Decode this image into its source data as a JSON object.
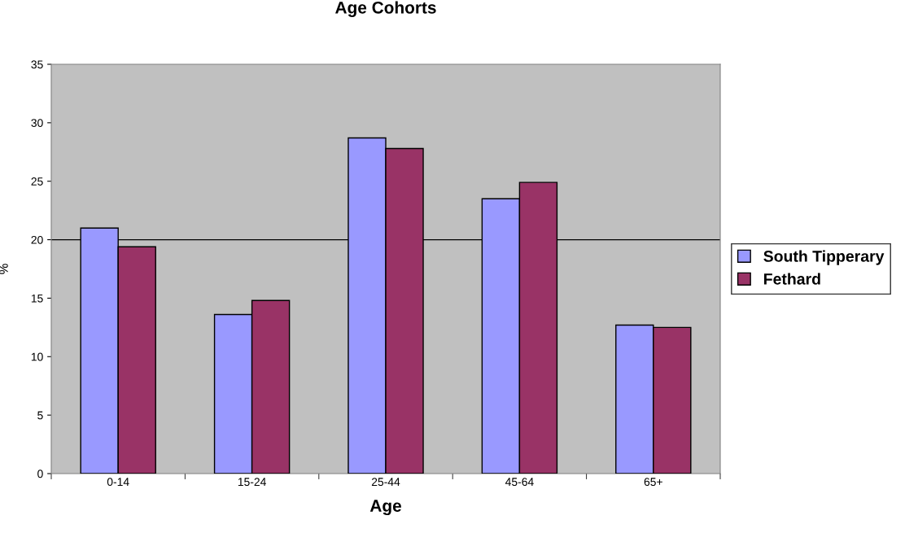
{
  "chart_data": {
    "type": "bar",
    "title": "Age Cohorts",
    "xlabel": "Age",
    "ylabel": "%",
    "categories": [
      "0-14",
      "15-24",
      "25-44",
      "45-64",
      "65+"
    ],
    "series": [
      {
        "name": "South Tipperary",
        "color": "#9999ff",
        "values": [
          21.0,
          13.6,
          28.7,
          23.5,
          12.7
        ]
      },
      {
        "name": "Fethard",
        "color": "#993366",
        "values": [
          19.4,
          14.8,
          27.8,
          24.9,
          12.5
        ]
      }
    ],
    "ylim": [
      0,
      35
    ],
    "yticks": [
      0,
      5,
      10,
      15,
      20,
      25,
      30,
      35
    ],
    "grid": false,
    "legend": "right",
    "ref_lines": [
      {
        "axis": "y",
        "value": 20,
        "color": "#000000"
      }
    ]
  }
}
